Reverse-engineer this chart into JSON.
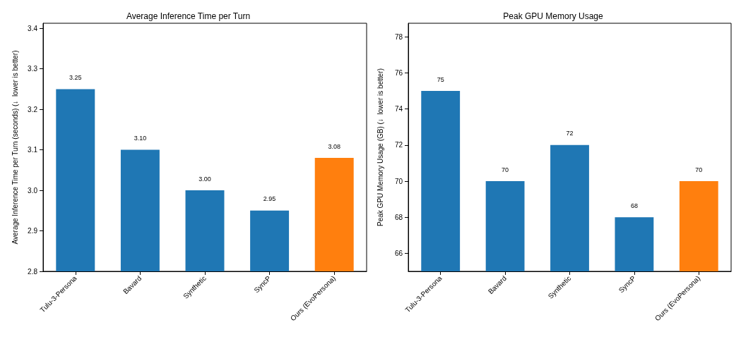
{
  "chart_data": [
    {
      "type": "bar",
      "title": "Average Inference Time per Turn",
      "ylabel": "Average Inference Time per Turn (seconds) (↓  lower is better)",
      "categories": [
        "Tulu-3-Persona",
        "Bavard",
        "Synthetic",
        "SyncP",
        "Ours (EvoPersona)"
      ],
      "values": [
        3.25,
        3.1,
        3.0,
        2.95,
        3.08
      ],
      "colors": [
        "#1f77b4",
        "#1f77b4",
        "#1f77b4",
        "#1f77b4",
        "#ff7f0e"
      ],
      "value_labels": [
        "3.25",
        "3.10",
        "3.00",
        "2.95",
        "3.08"
      ],
      "ylim": [
        2.8,
        3.4125
      ],
      "yticks": [
        2.8,
        2.9,
        {
          "value": 3,
          "label": "3.0"
        },
        3.1,
        3.2,
        3.3,
        3.4
      ]
    },
    {
      "type": "bar",
      "title": "Peak GPU Memory Usage",
      "ylabel": "Peak GPU Memory Usage (GB) (↓  lower is better)",
      "categories": [
        "Tulu-3-Persona",
        "Bavard",
        "Synthetic",
        "SyncP",
        "Ours (EvoPersona)"
      ],
      "values": [
        75,
        70,
        72,
        68,
        70
      ],
      "colors": [
        "#1f77b4",
        "#1f77b4",
        "#1f77b4",
        "#1f77b4",
        "#ff7f0e"
      ],
      "data_labels": true,
      "ylim": [
        65,
        78.75
      ],
      "yticks": [
        66,
        68,
        70,
        72,
        74,
        76,
        78
      ]
    }
  ]
}
